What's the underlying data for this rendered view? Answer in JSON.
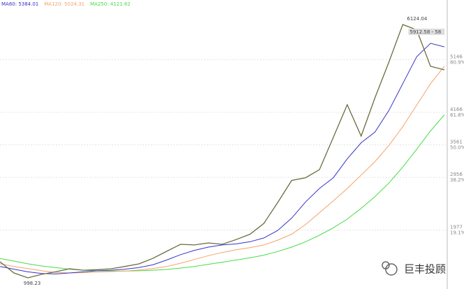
{
  "chart_data": {
    "type": "line",
    "ylim": [
      933,
      6255
    ],
    "yticks": [
      1977,
      2956,
      3561,
      4166,
      5146
    ],
    "level_labels": [
      "19.1%",
      "38.2%",
      "50.0%",
      "61.8%",
      "80.9%"
    ],
    "grid": true,
    "annotations": [
      "6124.04",
      "5912.58 - 58",
      "998.23"
    ],
    "watermark": "巨丰投顾",
    "series": [
      {
        "name": "MA250: 4121.82",
        "color": "#44dd44",
        "values": [
          1450,
          1400,
          1350,
          1310,
          1280,
          1250,
          1230,
          1220,
          1215,
          1215,
          1220,
          1230,
          1245,
          1270,
          1300,
          1340,
          1380,
          1420,
          1460,
          1510,
          1580,
          1660,
          1760,
          1880,
          2020,
          2180,
          2380,
          2600,
          2850,
          3150,
          3480,
          3820,
          4121.82
        ]
      },
      {
        "name": "MA120: 5024.31",
        "color": "#f4a26a",
        "values": [
          1350,
          1300,
          1260,
          1220,
          1190,
          1180,
          1185,
          1195,
          1205,
          1215,
          1235,
          1260,
          1300,
          1360,
          1430,
          1500,
          1560,
          1610,
          1650,
          1700,
          1790,
          1900,
          2080,
          2300,
          2520,
          2750,
          3000,
          3250,
          3550,
          3900,
          4300,
          4700,
          5024.31
        ]
      },
      {
        "name": "MA60: 5384.01",
        "color": "#3333cc",
        "values": [
          1300,
          1250,
          1200,
          1170,
          1160,
          1180,
          1200,
          1220,
          1230,
          1250,
          1280,
          1330,
          1420,
          1520,
          1600,
          1660,
          1700,
          1720,
          1760,
          1830,
          1970,
          2200,
          2500,
          2750,
          2950,
          3300,
          3600,
          3800,
          4200,
          4700,
          5200,
          5450,
          5384.01
        ]
      },
      {
        "color": "#6b6b40",
        "values": [
          1387,
          1180,
          1089,
          1154,
          1200,
          1258,
          1230,
          1240,
          1258,
          1300,
          1348,
          1450,
          1582,
          1712,
          1700,
          1738,
          1712,
          1800,
          1900,
          2101,
          2491,
          2900,
          2950,
          3100,
          3700,
          4308,
          3724,
          4438,
          5100,
          5800,
          5700,
          5022,
          4957
        ]
      }
    ]
  }
}
